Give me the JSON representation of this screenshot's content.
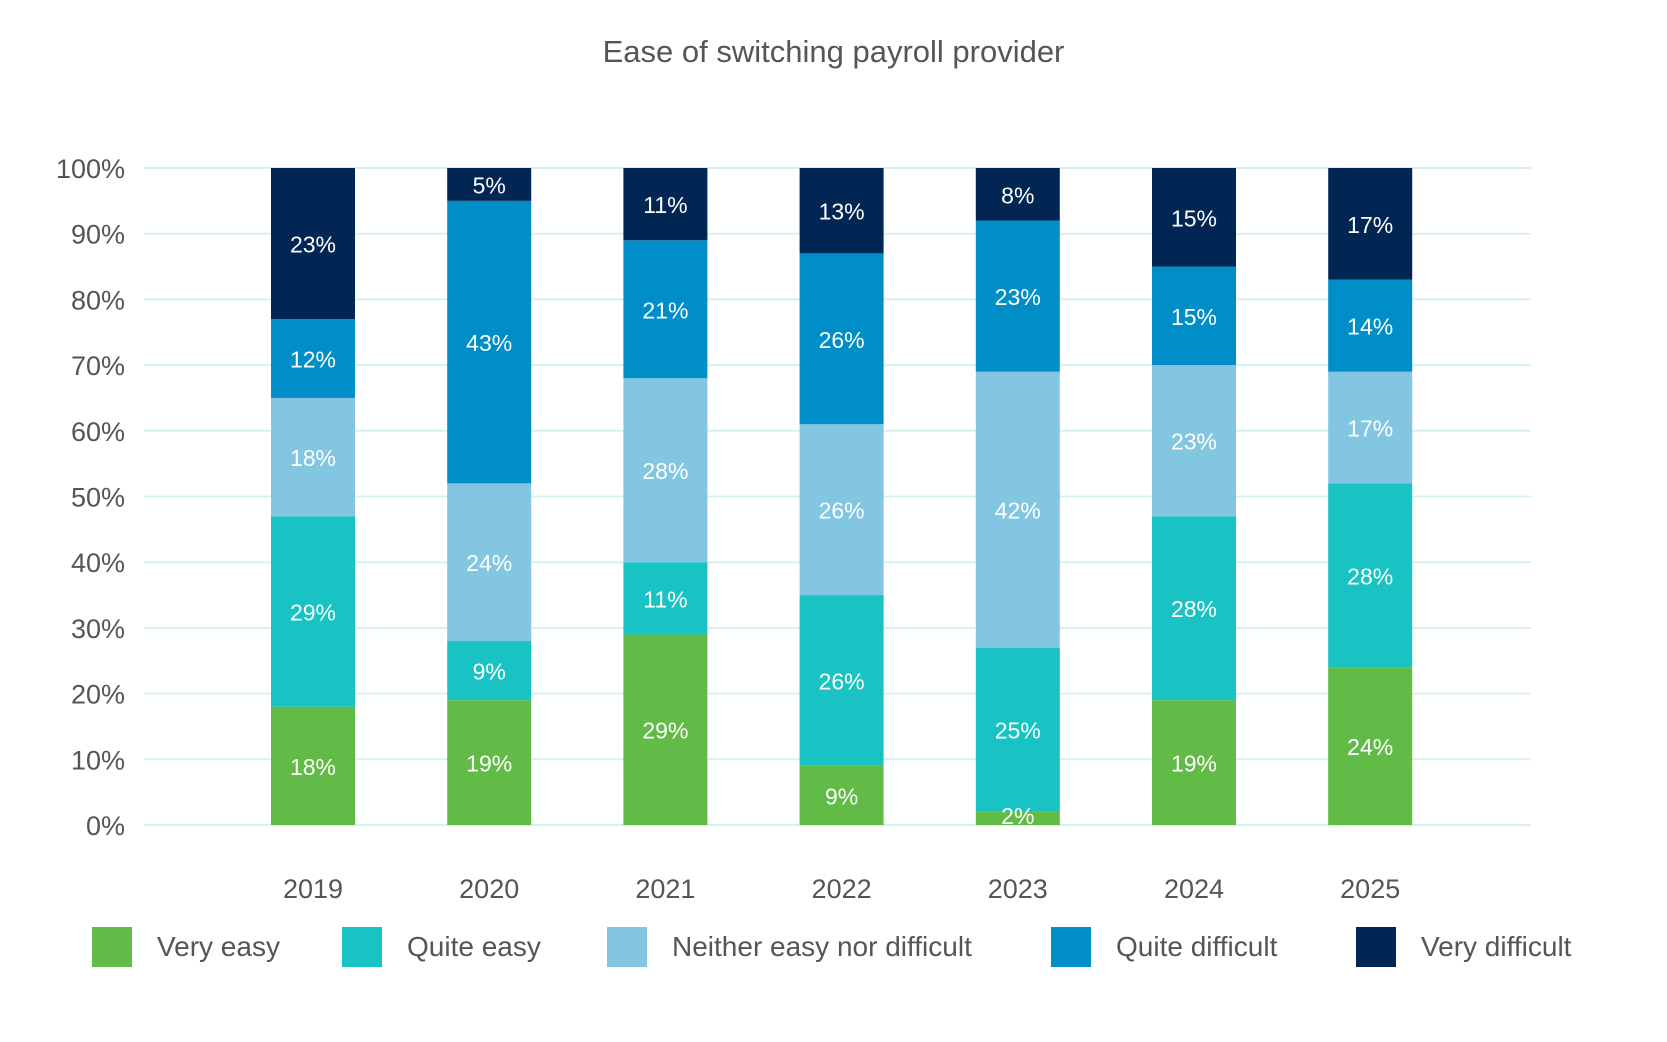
{
  "chart_data": {
    "type": "bar",
    "stacked": true,
    "title": "Ease of switching payroll provider",
    "xlabel": "",
    "ylabel": "",
    "ylim": [
      0,
      100
    ],
    "y_ticks": [
      "0%",
      "10%",
      "20%",
      "30%",
      "40%",
      "50%",
      "60%",
      "70%",
      "80%",
      "90%",
      "100%"
    ],
    "grid": true,
    "legend_position": "bottom",
    "categories": [
      "2019",
      "2020",
      "2021",
      "2022",
      "2023",
      "2024",
      "2025"
    ],
    "series": [
      {
        "name": "Very easy",
        "color": "#62BA47",
        "values": [
          18,
          19,
          29,
          9,
          2,
          19,
          24
        ]
      },
      {
        "name": "Quite easy",
        "color": "#1AC3C3",
        "values": [
          29,
          9,
          11,
          26,
          25,
          28,
          28
        ]
      },
      {
        "name": "Neither easy nor difficult",
        "color": "#82C6E2",
        "values": [
          18,
          24,
          28,
          26,
          42,
          23,
          17
        ]
      },
      {
        "name": "Quite difficult",
        "color": "#008EC8",
        "values": [
          12,
          43,
          21,
          26,
          23,
          15,
          14
        ]
      },
      {
        "name": "Very difficult",
        "color": "#022654",
        "values": [
          23,
          5,
          11,
          13,
          8,
          15,
          17
        ]
      }
    ],
    "data_label_suffix": "%"
  },
  "colors": {
    "gridline": "#D9F0F3",
    "axis_text": "#555555",
    "data_label": "#FFFFFF"
  }
}
